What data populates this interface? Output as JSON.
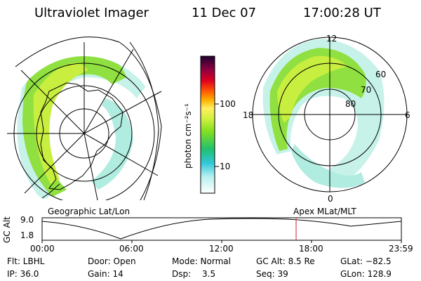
{
  "header": {
    "instrument": "Ultraviolet Imager",
    "date": "11 Dec 07",
    "time": "17:00:28 UT"
  },
  "left_panel": {
    "label": "Geographic Lat/Lon"
  },
  "right_panel": {
    "label": "Apex MLat/MLT",
    "mlt_labels": {
      "top": "12",
      "left": "18",
      "right": "6",
      "bottom": "0"
    },
    "lat_labels": [
      "60",
      "70",
      "80"
    ]
  },
  "colorbar": {
    "unit_label": "photon cm⁻²s⁻¹",
    "ticks": [
      "100",
      "10"
    ],
    "scale": "log"
  },
  "altitude_plot": {
    "ylabel": "GC Alt",
    "yticks": [
      "9.0",
      "1.8"
    ],
    "xticks": [
      "00:00",
      "06:00",
      "12:00",
      "18:00",
      "23:59"
    ],
    "marker_time": "17:00",
    "marker_color": "#d02020"
  },
  "info": {
    "filter": "Flt: LBHL",
    "door": "Door: Open",
    "mode": "Mode: Normal",
    "gc_alt": "GC Alt: 8.5 Re",
    "glat": "GLat: −82.5",
    "ip": "IP: 36.0",
    "gain": "Gain: 14",
    "dsp_label": "Dsp:",
    "dsp_value": "3.5",
    "seq": "Seq: 39",
    "glon": "GLon: 128.9"
  }
}
